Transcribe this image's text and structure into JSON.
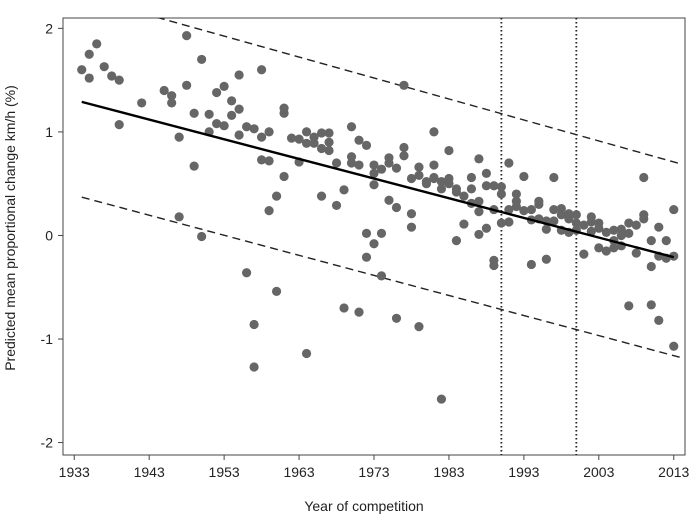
{
  "chart_data": {
    "type": "scatter",
    "xlabel": "Year of competition",
    "ylabel": "Predicted mean proportional change km/h (%)",
    "xlim": [
      1931.5,
      2014.5
    ],
    "ylim": [
      -2.12,
      2.1
    ],
    "x_ticks": [
      1933,
      1943,
      1953,
      1963,
      1973,
      1983,
      1993,
      2003,
      2013
    ],
    "x_tick_labels": [
      "1933",
      "1943",
      "1953",
      "1963",
      "1973",
      "1983",
      "1993",
      "2003",
      "2013"
    ],
    "y_ticks": [
      -2,
      -1,
      0,
      1,
      2
    ],
    "y_tick_labels": [
      "-2",
      "-1",
      "0",
      "1",
      "2"
    ],
    "grid": false,
    "point_color": "#666666",
    "series": [
      {
        "kind": "points",
        "points": [
          [
            1934,
            1.6
          ],
          [
            1935,
            1.52
          ],
          [
            1935,
            1.75
          ],
          [
            1936,
            1.85
          ],
          [
            1937,
            1.63
          ],
          [
            1938,
            1.54
          ],
          [
            1939,
            1.5
          ],
          [
            1939,
            1.07
          ],
          [
            1942,
            1.28
          ],
          [
            1945,
            1.4
          ],
          [
            1946,
            1.35
          ],
          [
            1946,
            1.28
          ],
          [
            1947,
            0.95
          ],
          [
            1947,
            0.18
          ],
          [
            1948,
            1.93
          ],
          [
            1948,
            1.45
          ],
          [
            1949,
            1.18
          ],
          [
            1949,
            0.67
          ],
          [
            1950,
            1.7
          ],
          [
            1950,
            -0.01
          ],
          [
            1951,
            1.17
          ],
          [
            1951,
            1.0
          ],
          [
            1952,
            1.08
          ],
          [
            1952,
            1.38
          ],
          [
            1953,
            1.44
          ],
          [
            1953,
            1.06
          ],
          [
            1954,
            1.3
          ],
          [
            1954,
            1.16
          ],
          [
            1955,
            1.55
          ],
          [
            1955,
            1.22
          ],
          [
            1955,
            0.97
          ],
          [
            1956,
            1.05
          ],
          [
            1956,
            -0.36
          ],
          [
            1957,
            1.03
          ],
          [
            1957,
            -0.86
          ],
          [
            1957,
            -1.27
          ],
          [
            1958,
            1.6
          ],
          [
            1958,
            0.95
          ],
          [
            1958,
            0.73
          ],
          [
            1959,
            1.0
          ],
          [
            1959,
            0.72
          ],
          [
            1959,
            0.24
          ],
          [
            1960,
            0.38
          ],
          [
            1960,
            -0.54
          ],
          [
            1961,
            0.57
          ],
          [
            1961,
            1.18
          ],
          [
            1961,
            1.23
          ],
          [
            1962,
            0.94
          ],
          [
            1963,
            0.93
          ],
          [
            1963,
            0.71
          ],
          [
            1964,
            0.89
          ],
          [
            1964,
            1.0
          ],
          [
            1964,
            -1.14
          ],
          [
            1965,
            0.89
          ],
          [
            1965,
            0.95
          ],
          [
            1966,
            0.99
          ],
          [
            1966,
            0.84
          ],
          [
            1966,
            0.38
          ],
          [
            1967,
            0.99
          ],
          [
            1967,
            0.9
          ],
          [
            1967,
            0.82
          ],
          [
            1968,
            0.7
          ],
          [
            1968,
            0.29
          ],
          [
            1969,
            0.44
          ],
          [
            1969,
            -0.7
          ],
          [
            1970,
            1.05
          ],
          [
            1970,
            0.76
          ],
          [
            1970,
            0.7
          ],
          [
            1971,
            0.92
          ],
          [
            1971,
            0.68
          ],
          [
            1971,
            -0.74
          ],
          [
            1972,
            0.87
          ],
          [
            1972,
            0.02
          ],
          [
            1972,
            -0.21
          ],
          [
            1973,
            0.68
          ],
          [
            1973,
            0.6
          ],
          [
            1973,
            0.49
          ],
          [
            1973,
            -0.08
          ],
          [
            1974,
            0.64
          ],
          [
            1974,
            0.02
          ],
          [
            1974,
            -0.39
          ],
          [
            1975,
            0.75
          ],
          [
            1975,
            0.7
          ],
          [
            1975,
            0.34
          ],
          [
            1976,
            0.65
          ],
          [
            1976,
            0.27
          ],
          [
            1976,
            -0.8
          ],
          [
            1977,
            1.45
          ],
          [
            1977,
            0.85
          ],
          [
            1977,
            0.77
          ],
          [
            1978,
            0.55
          ],
          [
            1978,
            0.21
          ],
          [
            1978,
            0.08
          ],
          [
            1979,
            0.66
          ],
          [
            1979,
            0.58
          ],
          [
            1979,
            -0.88
          ],
          [
            1980,
            0.5
          ],
          [
            1980,
            0.52
          ],
          [
            1981,
            0.55
          ],
          [
            1981,
            0.56
          ],
          [
            1981,
            1.0
          ],
          [
            1981,
            0.68
          ],
          [
            1982,
            0.45
          ],
          [
            1982,
            0.52
          ],
          [
            1982,
            -1.58
          ],
          [
            1983,
            0.55
          ],
          [
            1983,
            0.82
          ],
          [
            1983,
            0.5
          ],
          [
            1984,
            0.45
          ],
          [
            1984,
            0.42
          ],
          [
            1984,
            -0.05
          ],
          [
            1985,
            0.38
          ],
          [
            1985,
            0.11
          ],
          [
            1986,
            0.56
          ],
          [
            1986,
            0.45
          ],
          [
            1986,
            0.31
          ],
          [
            1987,
            0.74
          ],
          [
            1987,
            0.33
          ],
          [
            1987,
            0.23
          ],
          [
            1987,
            0.01
          ],
          [
            1988,
            0.6
          ],
          [
            1988,
            0.48
          ],
          [
            1988,
            0.07
          ],
          [
            1989,
            0.48
          ],
          [
            1989,
            0.25
          ],
          [
            1989,
            -0.24
          ],
          [
            1989,
            -0.29
          ],
          [
            1990,
            0.47
          ],
          [
            1990,
            0.4
          ],
          [
            1990,
            0.12
          ],
          [
            1991,
            0.7
          ],
          [
            1991,
            0.25
          ],
          [
            1991,
            0.13
          ],
          [
            1992,
            0.33
          ],
          [
            1992,
            0.28
          ],
          [
            1992,
            0.4
          ],
          [
            1993,
            0.57
          ],
          [
            1993,
            0.24
          ],
          [
            1994,
            0.25
          ],
          [
            1994,
            0.15
          ],
          [
            1994,
            -0.28
          ],
          [
            1995,
            0.33
          ],
          [
            1995,
            0.3
          ],
          [
            1995,
            0.16
          ],
          [
            1996,
            0.14
          ],
          [
            1996,
            0.06
          ],
          [
            1996,
            -0.23
          ],
          [
            1997,
            0.56
          ],
          [
            1997,
            0.25
          ],
          [
            1997,
            0.14
          ],
          [
            1998,
            0.26
          ],
          [
            1998,
            0.2
          ],
          [
            1998,
            0.05
          ],
          [
            1999,
            0.21
          ],
          [
            1999,
            0.16
          ],
          [
            1999,
            0.03
          ],
          [
            2000,
            0.2
          ],
          [
            2000,
            0.12
          ],
          [
            2000,
            0.05
          ],
          [
            2001,
            0.1
          ],
          [
            2001,
            -0.18
          ],
          [
            2002,
            0.18
          ],
          [
            2002,
            0.13
          ],
          [
            2002,
            0.04
          ],
          [
            2003,
            0.12
          ],
          [
            2003,
            0.07
          ],
          [
            2003,
            -0.12
          ],
          [
            2004,
            0.03
          ],
          [
            2004,
            -0.15
          ],
          [
            2005,
            0.05
          ],
          [
            2005,
            -0.05
          ],
          [
            2005,
            -0.12
          ],
          [
            2006,
            0.06
          ],
          [
            2006,
            0.0
          ],
          [
            2006,
            -0.1
          ],
          [
            2007,
            0.12
          ],
          [
            2007,
            0.02
          ],
          [
            2007,
            -0.68
          ],
          [
            2008,
            0.1
          ],
          [
            2008,
            -0.17
          ],
          [
            2009,
            0.56
          ],
          [
            2009,
            0.2
          ],
          [
            2009,
            0.16
          ],
          [
            2010,
            -0.05
          ],
          [
            2010,
            -0.3
          ],
          [
            2010,
            -0.67
          ],
          [
            2011,
            0.08
          ],
          [
            2011,
            -0.2
          ],
          [
            2011,
            -0.82
          ],
          [
            2012,
            -0.05
          ],
          [
            2012,
            -0.22
          ],
          [
            2013,
            0.25
          ],
          [
            2013,
            -0.2
          ],
          [
            2013,
            -1.07
          ]
        ]
      },
      {
        "kind": "fit_line",
        "style": "solid",
        "x": [
          1934,
          2013
        ],
        "y": [
          1.29,
          -0.21
        ]
      },
      {
        "kind": "upper_bound",
        "style": "dashed",
        "x": [
          1934,
          2014
        ],
        "y": [
          2.31,
          0.69
        ]
      },
      {
        "kind": "lower_bound",
        "style": "dashed",
        "x": [
          1934,
          2014
        ],
        "y": [
          0.37,
          -1.18
        ]
      }
    ],
    "reference_lines": {
      "style": "dotted",
      "x": [
        1990,
        2000
      ]
    }
  }
}
